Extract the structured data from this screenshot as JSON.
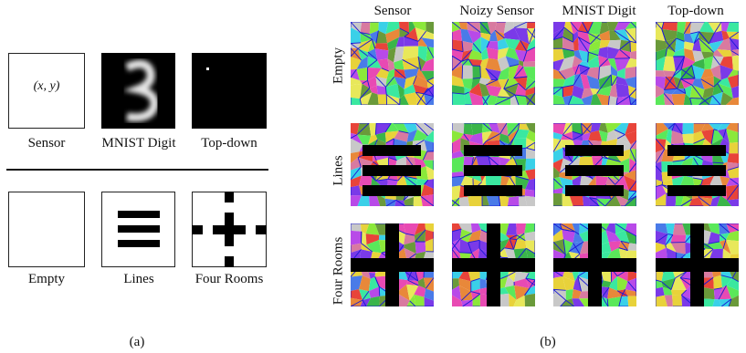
{
  "panel_a": {
    "input_types": [
      {
        "label": "Sensor",
        "formula": "(x, y)"
      },
      {
        "label": "MNIST Digit"
      },
      {
        "label": "Top-down"
      }
    ],
    "environments": [
      {
        "label": "Empty"
      },
      {
        "label": "Lines"
      },
      {
        "label": "Four Rooms"
      }
    ],
    "caption": "(a)"
  },
  "panel_b": {
    "columns": [
      "Sensor",
      "Noizy Sensor",
      "MNIST Digit",
      "Top-down"
    ],
    "rows": [
      "Empty",
      "Lines",
      "Four Rooms"
    ],
    "caption": "(b)"
  },
  "colors": {
    "edge_blue": "#1a1ad6",
    "obstacle": "#000000",
    "palette": [
      "#e8443a",
      "#3ab54a",
      "#4a7be8",
      "#e8d23a",
      "#b84ae8",
      "#3ad0e8",
      "#e8883a",
      "#8be83a",
      "#e84ab3",
      "#7a3ae8",
      "#3ae8a0",
      "#c8c8c8",
      "#6a9a3a",
      "#d87aa0",
      "#5ae85a",
      "#e8e85a"
    ]
  }
}
